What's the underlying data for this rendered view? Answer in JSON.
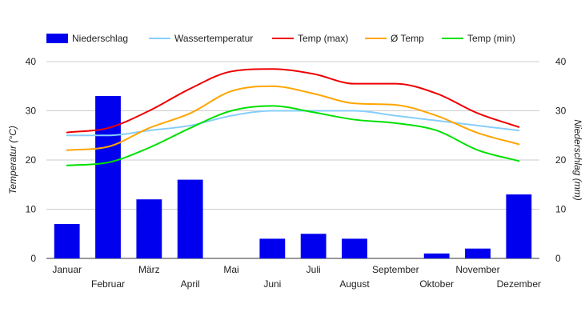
{
  "chart_data": {
    "type": "bar-line",
    "categories": [
      "Januar",
      "Februar",
      "März",
      "April",
      "Mai",
      "Juni",
      "Juli",
      "August",
      "September",
      "Oktober",
      "November",
      "Dezember"
    ],
    "y_left": {
      "label": "Temperatur (°C)",
      "ylim": [
        0,
        40
      ],
      "ticks": [
        0,
        10,
        20,
        30,
        40
      ]
    },
    "y_right": {
      "label": "Niederschlag (mm)",
      "ylim": [
        0,
        40
      ],
      "ticks": [
        0,
        10,
        20,
        30,
        40
      ]
    },
    "grid": true,
    "legend_position": "top",
    "bars": {
      "name": "Niederschlag",
      "color": "#0000ee",
      "values": [
        7,
        33,
        12,
        16,
        0,
        4,
        5,
        4,
        0,
        1,
        2,
        13
      ]
    },
    "series": [
      {
        "name": "Wassertemperatur",
        "color": "#87cefa",
        "values": [
          25,
          25,
          26,
          27,
          29,
          30,
          30,
          30,
          29,
          28,
          27,
          26
        ]
      },
      {
        "name": "Temp (max)",
        "color": "#ee0000",
        "values": [
          25.6,
          26.5,
          30,
          34.5,
          38,
          38.5,
          37.5,
          35.5,
          35.5,
          33.5,
          29.5,
          26.7
        ]
      },
      {
        "name": "Ø Temp",
        "color": "#ffa500",
        "values": [
          22,
          22.7,
          26.5,
          29.5,
          34,
          35,
          33.5,
          31.5,
          31.2,
          29,
          25.5,
          23.2
        ]
      },
      {
        "name": "Temp (min)",
        "color": "#00e000",
        "values": [
          18.9,
          19.5,
          22.5,
          26.5,
          30,
          31,
          29.7,
          28.2,
          27.5,
          26,
          22,
          19.8
        ]
      }
    ]
  }
}
